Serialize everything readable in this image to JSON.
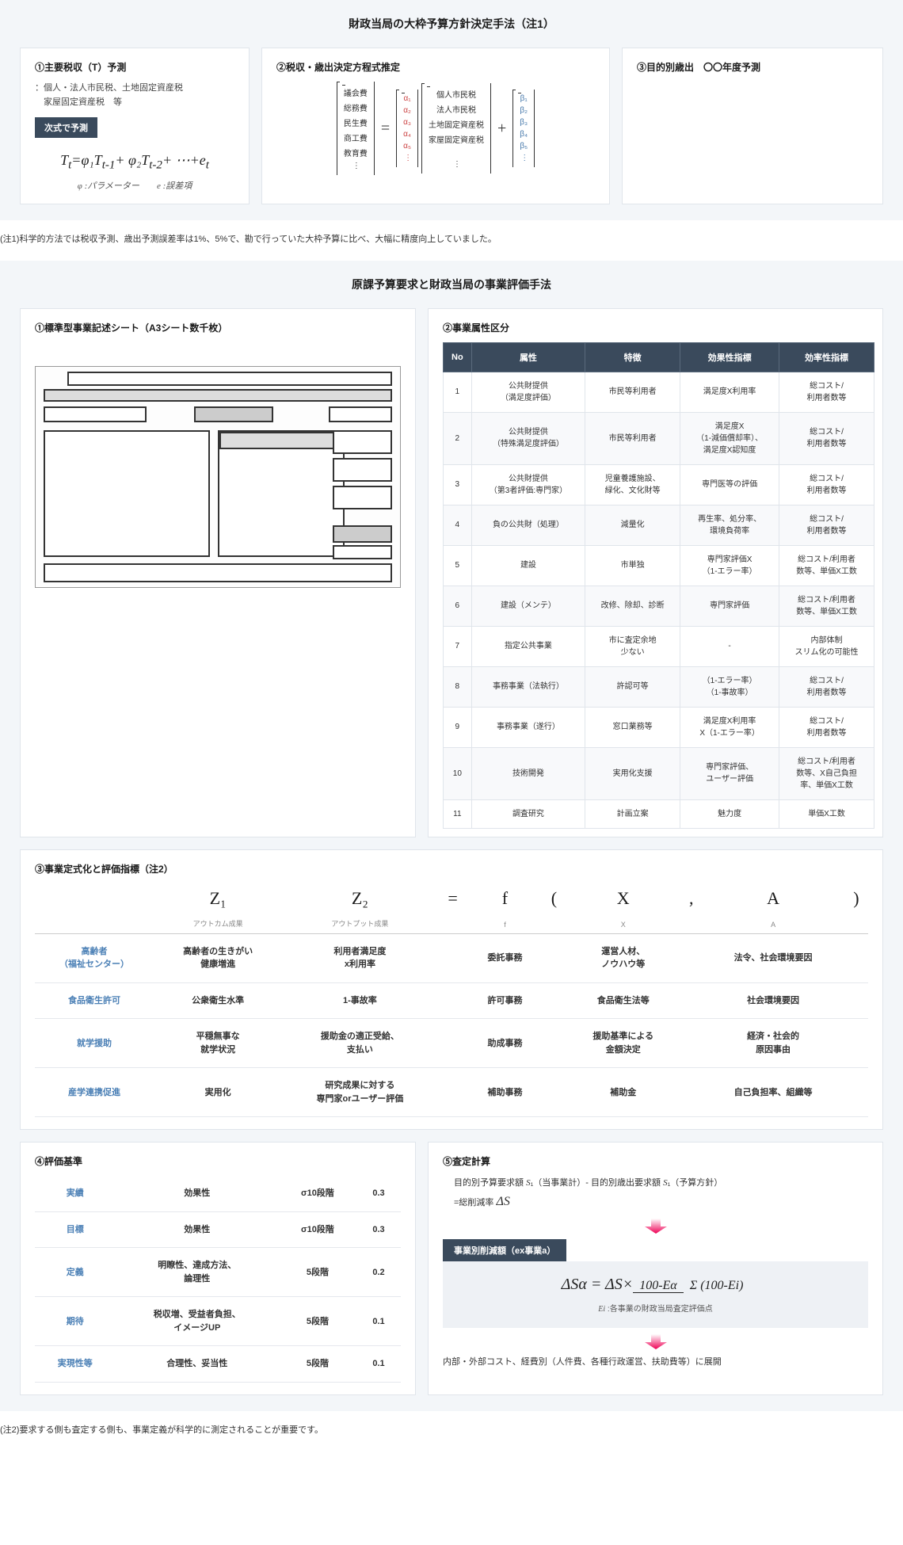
{
  "section1": {
    "title": "財政当局の大枠予算方針決定手法（注1）",
    "box1": {
      "title": "①主要税収（T）予測",
      "sub": "：個人・法人市民税、土地固定資産税\n　家屋固定資産税　等",
      "badge": "次式で予測",
      "formula": "Tₜ=φ₁Tₜ₋₁+ φ₂Tₜ₋₂+ ⋯+eₜ",
      "note_phi": "φ :パラメーター",
      "note_e": "e :誤差項"
    },
    "box2": {
      "title": "②税収・歳出決定方程式推定",
      "left": [
        "議会費",
        "総務費",
        "民生費",
        "商工費",
        "教育費",
        "⋮"
      ],
      "alpha": [
        "α₁",
        "α₂",
        "α₃",
        "α₄",
        "α₅",
        "⋮"
      ],
      "mid": [
        "個人市民税",
        "法人市民税",
        "土地固定資産税",
        "家屋固定資産税",
        "",
        "⋮"
      ],
      "beta": [
        "β₁",
        "β₂",
        "β₃",
        "β₄",
        "β₅",
        "⋮"
      ]
    },
    "box3": {
      "title": "③目的別歳出　〇〇年度予測"
    },
    "note": "(注1)科学的方法では税収予測、歳出予測誤差率は1%、5%で、勘で行っていた大枠予算に比べ、大幅に精度向上していました。"
  },
  "section2": {
    "title": "原課予算要求と財政当局の事業評価手法",
    "box1_title": "①標準型事業記述シート（A3シート数千枚）",
    "box2_title": "②事業属性区分",
    "attr_headers": [
      "No",
      "属性",
      "特徴",
      "効果性指標",
      "効率性指標"
    ],
    "attr_rows": [
      [
        "1",
        "公共財提供\n（満足度評価）",
        "市民等利用者",
        "満足度X利用率",
        "総コスト/\n利用者数等"
      ],
      [
        "2",
        "公共財提供\n（特殊満足度評価）",
        "市民等利用者",
        "満足度X\n（1-減価償却率）、\n満足度X認知度",
        "総コスト/\n利用者数等"
      ],
      [
        "3",
        "公共財提供\n（第3者評価:専門家）",
        "児童養護施設、\n緑化、文化財等",
        "専門医等の評価",
        "総コスト/\n利用者数等"
      ],
      [
        "4",
        "負の公共財（処理）",
        "減量化",
        "再生率、処分率、\n環境負荷率",
        "総コスト/\n利用者数等"
      ],
      [
        "5",
        "建設",
        "市単独",
        "専門家評価X\n（1-エラー率）",
        "総コスト/利用者\n数等、単価X工数"
      ],
      [
        "6",
        "建設（メンテ）",
        "改修、除却、診断",
        "専門家評価",
        "総コスト/利用者\n数等、単価X工数"
      ],
      [
        "7",
        "指定公共事業",
        "市に査定余地\n少ない",
        "-",
        "内部体制\nスリム化の可能性"
      ],
      [
        "8",
        "事務事業（法執行）",
        "許認可等",
        "（1-エラー率）\n（1-事故率）",
        "総コスト/\n利用者数等"
      ],
      [
        "9",
        "事務事業（遂行）",
        "窓口業務等",
        "満足度X利用率\nX（1-エラー率）",
        "総コスト/\n利用者数等"
      ],
      [
        "10",
        "技術開発",
        "実用化支援",
        "専門家評価、\nユーザー評価",
        "総コスト/利用者\n数等、X自己負担\n率、単価X工数"
      ],
      [
        "11",
        "調査研究",
        "計画立案",
        "魅力度",
        "単価X工数"
      ]
    ],
    "box3_title": "③事業定式化と評価指標（注2）",
    "fheaders": {
      "z1": "Z₁",
      "z2": "Z₂",
      "eq": "=",
      "f": "f",
      "lp": "(",
      "x": "X",
      "c": ",",
      "a": "A",
      "rp": ")"
    },
    "fsubs": {
      "z1": "アウトカム成果",
      "z2": "アウトプット成果",
      "f": "f",
      "x": "X",
      "a": "A"
    },
    "frows": [
      [
        "高齢者\n（福祉センター）",
        "高齢者の生きがい\n健康増進",
        "利用者満足度\nx利用率",
        "委託事務",
        "運営人材、\nノウハウ等",
        "法令、社会環境要因"
      ],
      [
        "食品衛生許可",
        "公衆衛生水準",
        "1-事故率",
        "許可事務",
        "食品衛生法等",
        "社会環境要因"
      ],
      [
        "就学援助",
        "平穏無事な\n就学状況",
        "援助金の適正受給、\n支払い",
        "助成事務",
        "援助基準による\n金額決定",
        "経済・社会的\n原因事由"
      ],
      [
        "産学連携促進",
        "実用化",
        "研究成果に対する\n専門家orユーザー評価",
        "補助事務",
        "補助金",
        "自己負担率、組織等"
      ]
    ],
    "box4_title": "④評価基準",
    "crit_rows": [
      [
        "実績",
        "効果性",
        "σ10段階",
        "0.3"
      ],
      [
        "目標",
        "効果性",
        "σ10段階",
        "0.3"
      ],
      [
        "定義",
        "明瞭性、達成方法、\n論理性",
        "5段階",
        "0.2"
      ],
      [
        "期待",
        "税収増、受益者負担、\nイメージUP",
        "5段階",
        "0.1"
      ],
      [
        "実現性等",
        "合理性、妥当性",
        "5段階",
        "0.1"
      ]
    ],
    "box5_title": "⑤査定計算",
    "calc_line1a": "目的別予算要求額 ",
    "calc_line1b": "（当事業計）- 目的別歳出要求額 ",
    "calc_line1c": "（予算方針）",
    "calc_line2": "=総削減率 ",
    "calc_badge": "事業別削減額（ex事業a）",
    "calc_ei": " :各事業の財政当局査定評価点",
    "calc_expand": "内部・外部コスト、経費別（人件費、各種行政運営、扶助費等）に展開",
    "note": "(注2)要求する側も査定する側も、事業定義が科学的に測定されることが重要です。"
  }
}
